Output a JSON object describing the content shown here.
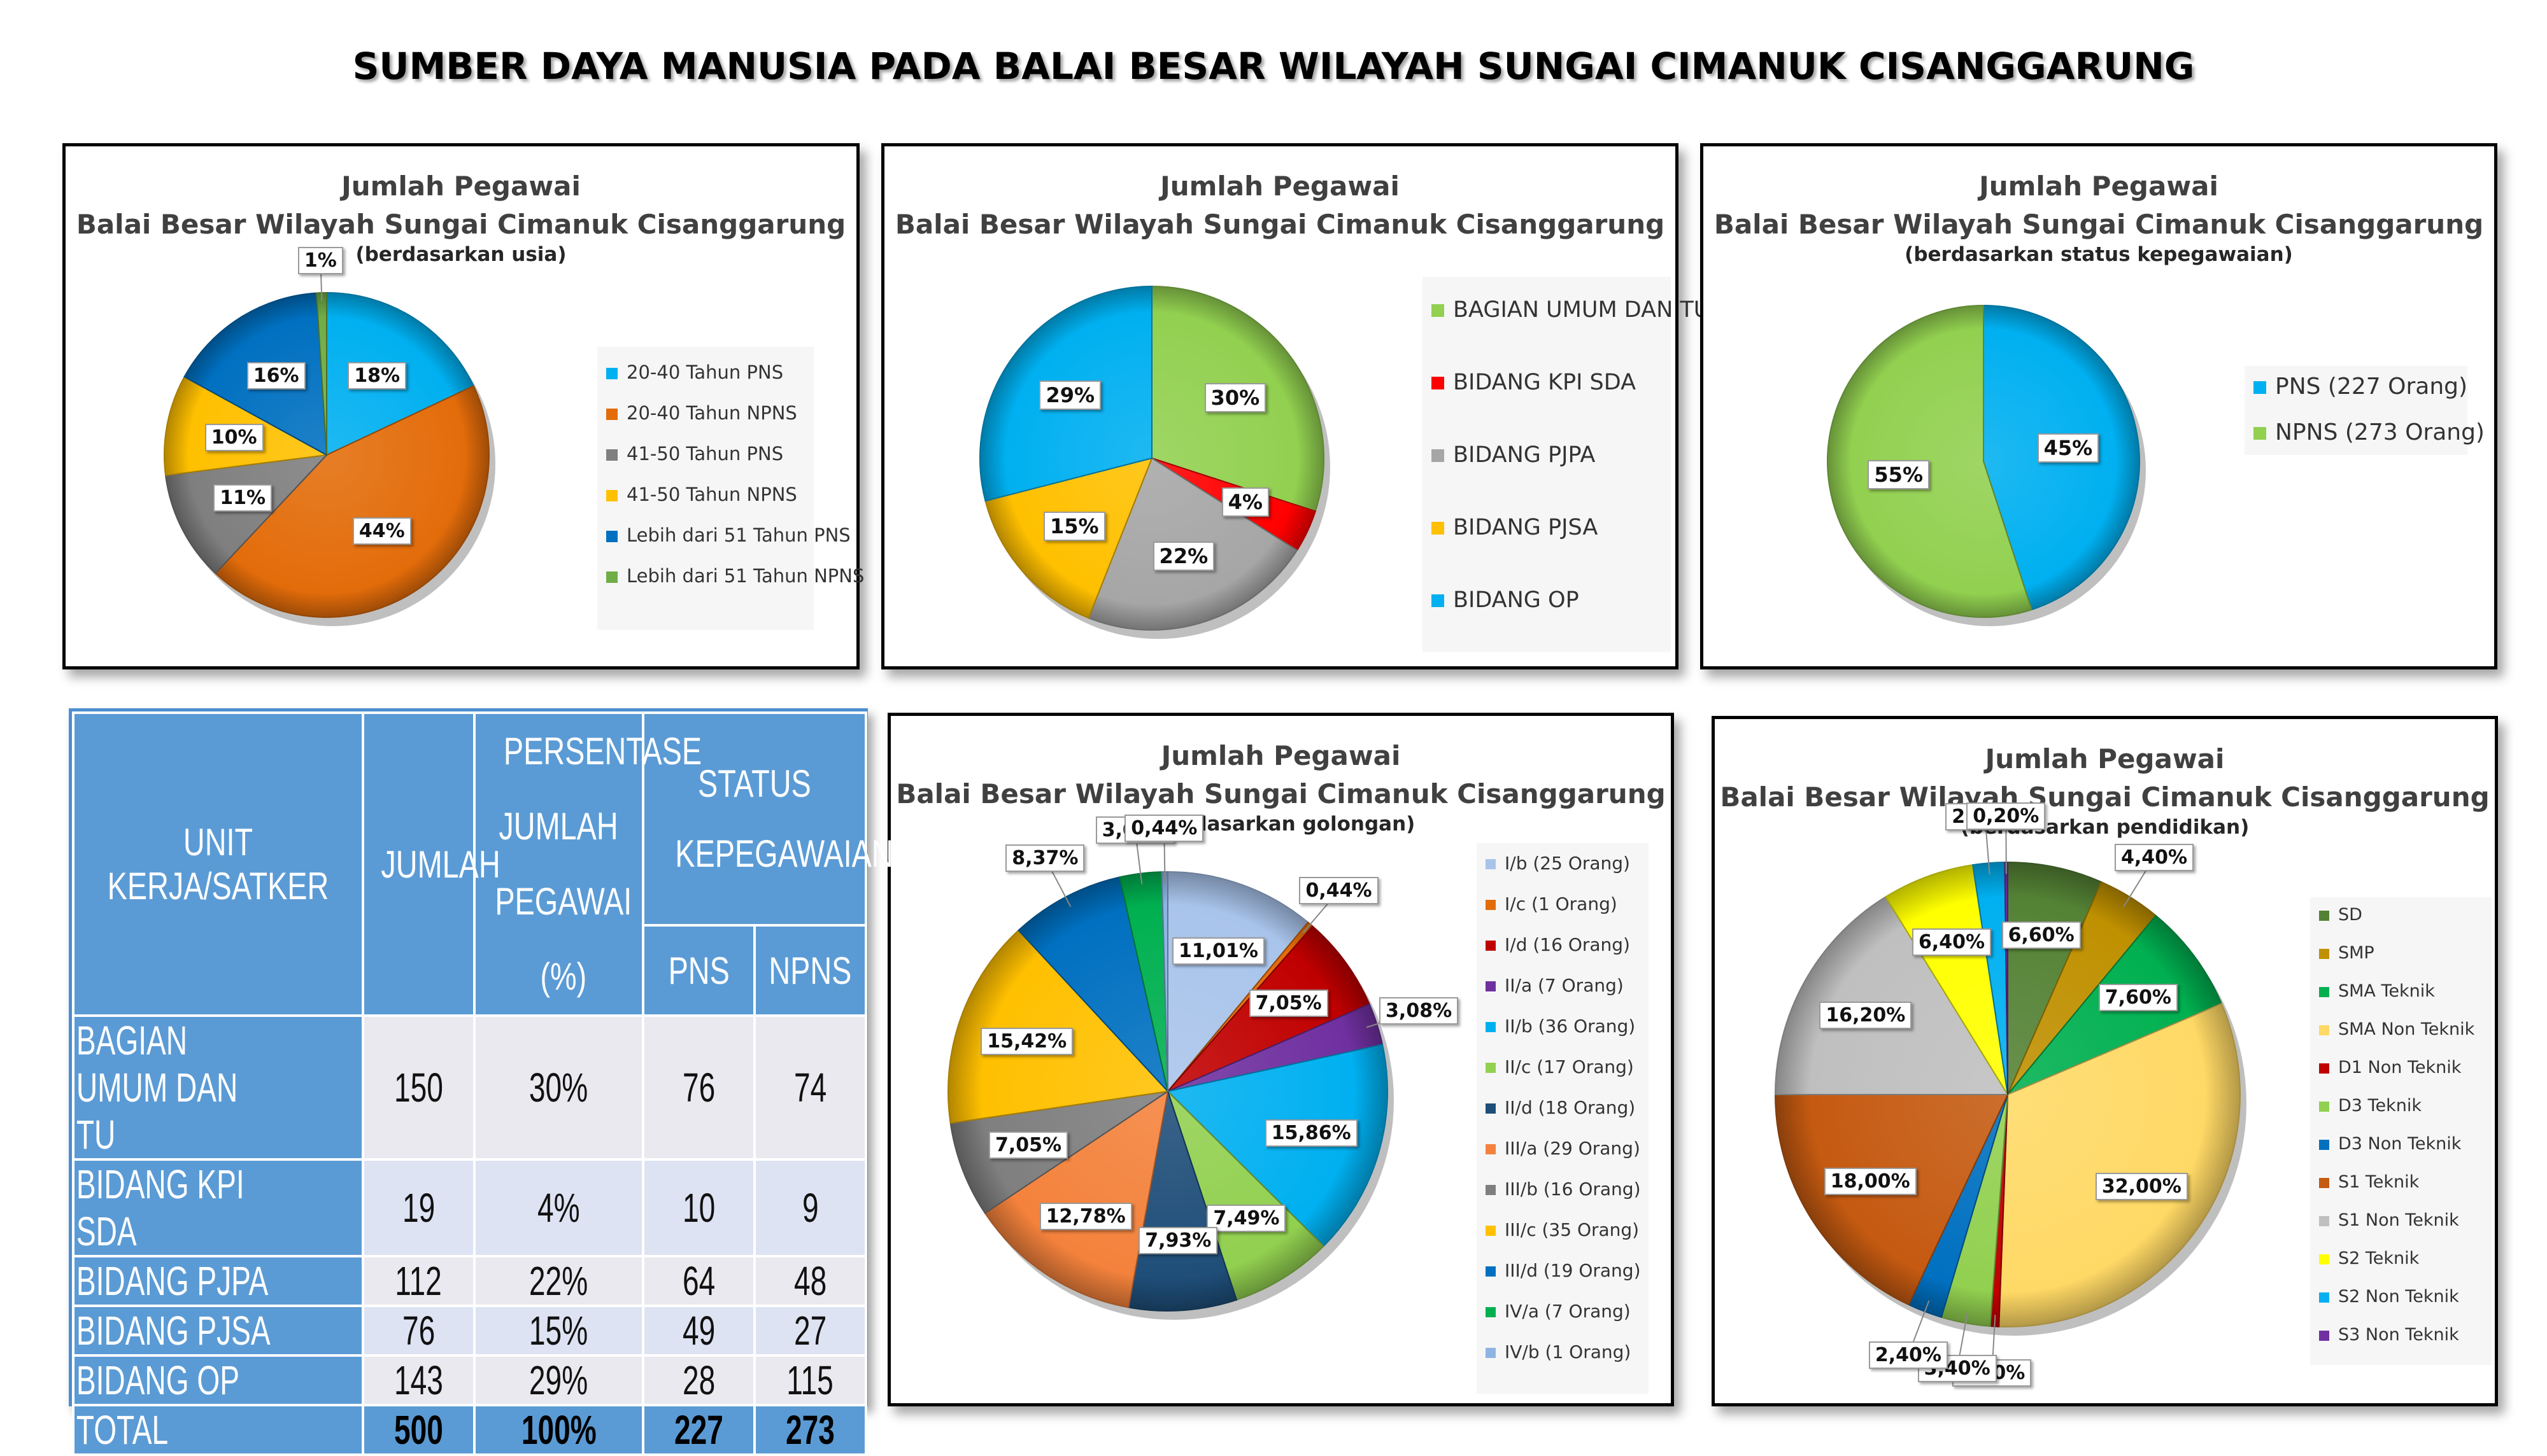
{
  "title": "SUMBER DAYA MANUSIA PADA BALAI BESAR WILAYAH SUNGAI CIMANUK CISANGGARUNG",
  "chart_data": [
    {
      "id": "usia",
      "type": "pie",
      "title": "Jumlah Pegawai",
      "subtitle": "Balai Besar Wilayah Sungai Cimanuk Cisanggarung",
      "note": "(berdasarkan usia)",
      "legend_position": "right",
      "categories": [
        "20-40 Tahun PNS",
        "20-40 Tahun NPNS",
        "41-50 Tahun PNS",
        "41-50 Tahun NPNS",
        "Lebih dari 51 Tahun PNS",
        "Lebih dari 51 Tahun NPNS"
      ],
      "values": [
        18,
        44,
        11,
        10,
        16,
        1
      ],
      "labels": [
        "18%",
        "44%",
        "11%",
        "10%",
        "16%",
        "1%"
      ],
      "colors": [
        "#00b0f0",
        "#e36c0a",
        "#7f7f7f",
        "#ffc000",
        "#0070c0",
        "#70ad47"
      ]
    },
    {
      "id": "unit",
      "type": "pie",
      "title": "Jumlah Pegawai",
      "subtitle": "Balai Besar Wilayah Sungai Cimanuk Cisanggarung",
      "note": "",
      "legend_position": "right",
      "categories": [
        "BAGIAN UMUM DAN TU",
        "BIDANG KPI SDA",
        "BIDANG PJPA",
        "BIDANG PJSA",
        "BIDANG OP"
      ],
      "values": [
        30,
        4,
        22,
        15,
        29
      ],
      "labels": [
        "30%",
        "4%",
        "22%",
        "15%",
        "29%"
      ],
      "colors": [
        "#92d050",
        "#ff0000",
        "#a6a6a6",
        "#ffc000",
        "#00b0f0"
      ]
    },
    {
      "id": "status",
      "type": "pie",
      "title": "Jumlah Pegawai",
      "subtitle": "Balai Besar Wilayah Sungai Cimanuk Cisanggarung",
      "note": "(berdasarkan status kepegawaian)",
      "legend_position": "right",
      "categories": [
        "PNS (227 Orang)",
        "NPNS (273 Orang)"
      ],
      "values": [
        45,
        55
      ],
      "labels": [
        "45%",
        "55%"
      ],
      "colors": [
        "#00b0f0",
        "#92d050"
      ]
    },
    {
      "id": "golongan",
      "type": "pie",
      "title": "Jumlah Pegawai",
      "subtitle": "Balai Besar Wilayah Sungai Cimanuk Cisanggarung",
      "note": "(berdasarkan golongan)",
      "legend_position": "right",
      "categories": [
        "I/b (25 Orang)",
        "I/c (1 Orang)",
        "I/d (16 Orang)",
        "II/a (7 Orang)",
        "II/b (36 Orang)",
        "II/c (17 Orang)",
        "II/d (18 Orang)",
        "III/a (29 Orang)",
        "III/b (16 Orang)",
        "III/c (35 Orang)",
        "III/d (19 Orang)",
        "IV/a (7 Orang)",
        "IV/b (1 Orang)"
      ],
      "values": [
        11.01,
        0.44,
        7.05,
        3.08,
        15.86,
        7.49,
        7.93,
        12.78,
        7.05,
        15.42,
        8.37,
        3.08,
        0.44
      ],
      "labels": [
        "11,01%",
        "0,44%",
        "7,05%",
        "3,08%",
        "15,86%",
        "7,49%",
        "7,93%",
        "12,78%",
        "7,05%",
        "15,42%",
        "8,37%",
        "3,08%",
        "0,44%"
      ],
      "colors": [
        "#a9c4eb",
        "#e36c0a",
        "#c00000",
        "#7030a0",
        "#00b0f0",
        "#92d050",
        "#1f4e79",
        "#f4823c",
        "#7f7f7f",
        "#ffc000",
        "#0070c0",
        "#00b050",
        "#8eb4e3"
      ]
    },
    {
      "id": "pendidikan",
      "type": "pie",
      "title": "Jumlah Pegawai",
      "subtitle": "Balai Besar Wilayah Sungai Cimanuk Cisanggarung",
      "note": "(berdasarkan pendidikan)",
      "legend_position": "right",
      "categories": [
        "SD",
        "SMP",
        "SMA Teknik",
        "SMA Non Teknik",
        "D1 Non Teknik",
        "D3 Teknik",
        "D3 Non Teknik",
        "S1 Teknik",
        "S1 Non Teknik",
        "S2 Teknik",
        "S2 Non Teknik",
        "S3 Non Teknik"
      ],
      "values": [
        6.6,
        4.4,
        7.6,
        32.0,
        0.6,
        3.4,
        2.4,
        18.0,
        16.2,
        6.4,
        2.2,
        0.2
      ],
      "labels": [
        "6,60%",
        "4,40%",
        "7,60%",
        "32,00%",
        "0,60%",
        "3,40%",
        "2,40%",
        "18,00%",
        "16,20%",
        "6,40%",
        "2,20%",
        "0,20%"
      ],
      "colors": [
        "#548235",
        "#bf9000",
        "#00b050",
        "#ffd966",
        "#c00000",
        "#92d050",
        "#0070c0",
        "#c55a11",
        "#bfbfbf",
        "#ffff00",
        "#00b0f0",
        "#7030a0"
      ]
    }
  ],
  "table": {
    "headers": {
      "unit": "UNIT KERJA/SATKER",
      "jumlah": "JUMLAH",
      "persen": [
        "PERSENTASE",
        "JUMLAH",
        "PEGAWAI (%)"
      ],
      "status": [
        "STATUS",
        "KEPEGAWAIAN"
      ],
      "pns": "PNS",
      "npns": "NPNS"
    },
    "rows": [
      {
        "unit": "BAGIAN UMUM DAN TU",
        "jumlah": "150",
        "persen": "30%",
        "pns": "76",
        "npns": "74"
      },
      {
        "unit": "BIDANG KPI SDA",
        "jumlah": "19",
        "persen": "4%",
        "pns": "10",
        "npns": "9"
      },
      {
        "unit": "BIDANG PJPA",
        "jumlah": "112",
        "persen": "22%",
        "pns": "64",
        "npns": "48"
      },
      {
        "unit": "BIDANG PJSA",
        "jumlah": "76",
        "persen": "15%",
        "pns": "49",
        "npns": "27"
      },
      {
        "unit": "BIDANG OP",
        "jumlah": "143",
        "persen": "29%",
        "pns": "28",
        "npns": "115"
      }
    ],
    "total": {
      "unit": "TOTAL",
      "jumlah": "500",
      "persen": "100%",
      "pns": "227",
      "npns": "273"
    }
  }
}
